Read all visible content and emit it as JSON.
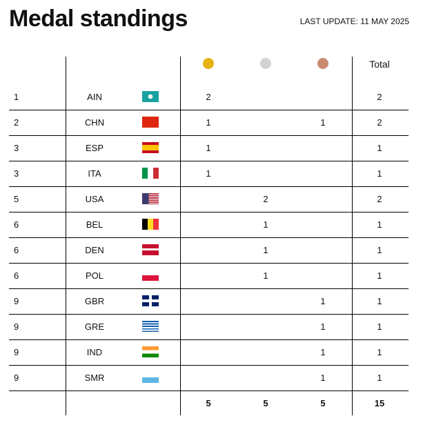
{
  "title": "Medal standings",
  "last_update": "LAST UPDATE: 11 MAY 2025",
  "header": {
    "total": "Total",
    "medal_colors": {
      "gold": "#e6b214",
      "silver": "#d3d3d3",
      "bronze": "#c98a70"
    }
  },
  "rows": [
    {
      "rank": "1",
      "country": "AIN",
      "gold": "2",
      "silver": "",
      "bronze": "",
      "total": "2"
    },
    {
      "rank": "2",
      "country": "CHN",
      "gold": "1",
      "silver": "",
      "bronze": "1",
      "total": "2"
    },
    {
      "rank": "3",
      "country": "ESP",
      "gold": "1",
      "silver": "",
      "bronze": "",
      "total": "1"
    },
    {
      "rank": "3",
      "country": "ITA",
      "gold": "1",
      "silver": "",
      "bronze": "",
      "total": "1"
    },
    {
      "rank": "5",
      "country": "USA",
      "gold": "",
      "silver": "2",
      "bronze": "",
      "total": "2"
    },
    {
      "rank": "6",
      "country": "BEL",
      "gold": "",
      "silver": "1",
      "bronze": "",
      "total": "1"
    },
    {
      "rank": "6",
      "country": "DEN",
      "gold": "",
      "silver": "1",
      "bronze": "",
      "total": "1"
    },
    {
      "rank": "6",
      "country": "POL",
      "gold": "",
      "silver": "1",
      "bronze": "",
      "total": "1"
    },
    {
      "rank": "9",
      "country": "GBR",
      "gold": "",
      "silver": "",
      "bronze": "1",
      "total": "1"
    },
    {
      "rank": "9",
      "country": "GRE",
      "gold": "",
      "silver": "",
      "bronze": "1",
      "total": "1"
    },
    {
      "rank": "9",
      "country": "IND",
      "gold": "",
      "silver": "",
      "bronze": "1",
      "total": "1"
    },
    {
      "rank": "9",
      "country": "SMR",
      "gold": "",
      "silver": "",
      "bronze": "1",
      "total": "1"
    }
  ],
  "totals": {
    "gold": "5",
    "silver": "5",
    "bronze": "5",
    "total": "15"
  }
}
